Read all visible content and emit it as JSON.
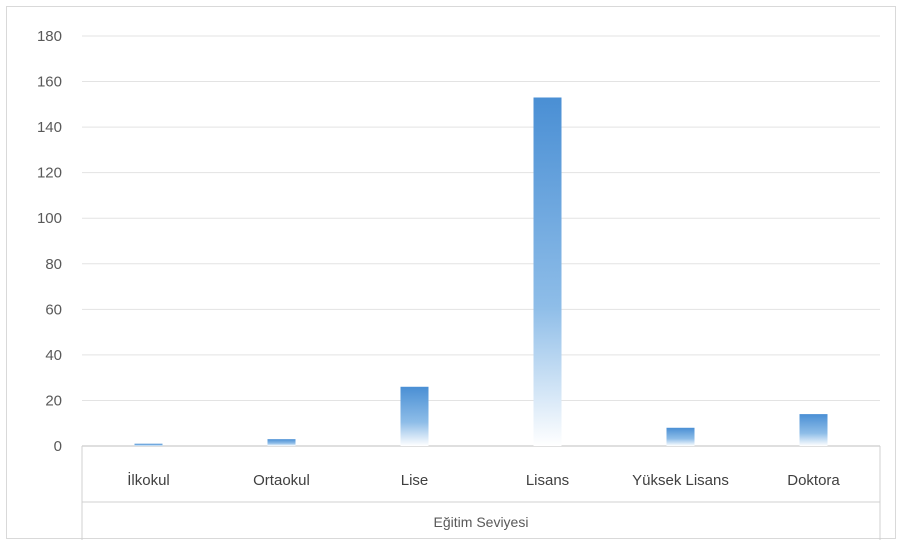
{
  "chart_data": {
    "type": "bar",
    "title": "",
    "xlabel": "Eğitim Seviyesi",
    "ylabel": "",
    "categories": [
      "İlkokul",
      "Ortaokul",
      "Lise",
      "Lisans",
      "Yüksek Lisans",
      "Doktora"
    ],
    "values": [
      1,
      3,
      26,
      153,
      8,
      14
    ],
    "ylim": [
      0,
      180
    ],
    "yticks": [
      "0",
      "20",
      "40",
      "60",
      "80",
      "100",
      "120",
      "140",
      "160",
      "180"
    ],
    "grid": true,
    "legend": "none",
    "bar_color": "#5b9bd5"
  }
}
